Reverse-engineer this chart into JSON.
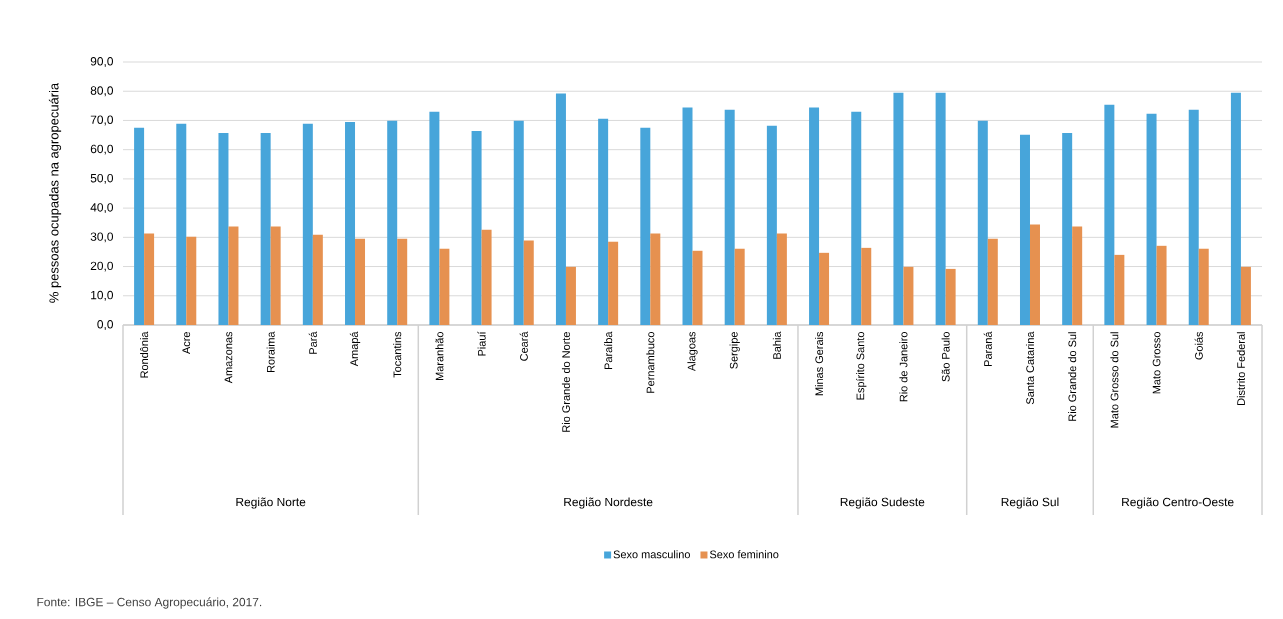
{
  "chart_data": {
    "type": "bar",
    "categories": [
      "Rondônia",
      "Acre",
      "Amazonas",
      "Roraima",
      "Pará",
      "Amapá",
      "Tocantins",
      "Maranhão",
      "Piauí",
      "Ceará",
      "Rio Grande  do Norte",
      "Paraíba",
      "Pernambuco",
      "Alagoas",
      "Sergipe",
      "Bahia",
      "Minas Gerais",
      "Espírito Santo",
      "Rio de Janeiro",
      "São Paulo",
      "Paraná",
      "Santa Catarina",
      "Rio Grande do Sul",
      "Mato Grosso do Sul",
      "Mato Grosso",
      "Goiás",
      "Distrito Federal"
    ],
    "series": [
      {
        "name": "Sexo masculino",
        "color": "#47a5da",
        "values": [
          67.5,
          68.9,
          65.7,
          65.7,
          68.9,
          69.5,
          69.9,
          73.0,
          66.4,
          69.9,
          79.2,
          70.6,
          67.5,
          74.4,
          73.7,
          68.2,
          74.4,
          73.0,
          79.5,
          79.5,
          69.9,
          65.1,
          65.7,
          75.4,
          72.3,
          73.7,
          79.5
        ]
      },
      {
        "name": "Sexo feminino",
        "color": "#e69150",
        "values": [
          31.3,
          30.2,
          33.7,
          33.7,
          30.9,
          29.5,
          29.5,
          26.1,
          32.6,
          28.9,
          19.9,
          28.5,
          31.3,
          25.4,
          26.1,
          31.3,
          24.7,
          26.4,
          19.9,
          19.2,
          29.5,
          34.4,
          33.7,
          24.0,
          27.1,
          26.1,
          19.9
        ]
      }
    ],
    "ylabel": "% pessoas ocupadas na agropecuária",
    "ylim": [
      0,
      90
    ],
    "yticks": [
      {
        "value": 0,
        "label": "0,0"
      },
      {
        "value": 10,
        "label": "10,0"
      },
      {
        "value": 20,
        "label": "20,0"
      },
      {
        "value": 30,
        "label": "30,0"
      },
      {
        "value": 40,
        "label": "40,0"
      },
      {
        "value": 50,
        "label": "50,0"
      },
      {
        "value": 60,
        "label": "60,0"
      },
      {
        "value": 70,
        "label": "70,0"
      },
      {
        "value": 80,
        "label": "80,0"
      },
      {
        "value": 90,
        "label": "90,0"
      }
    ],
    "grid": "y",
    "legend": "bottom",
    "annotations": [
      "Região Norte",
      "Região Nordeste",
      "Região Sudeste",
      "Região Sul",
      "Região Centro-Oeste",
      "Fonte: IBGE – Censo Agropecuário, 2017."
    ]
  }
}
